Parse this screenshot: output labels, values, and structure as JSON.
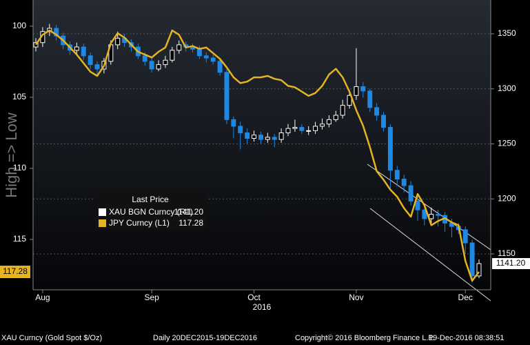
{
  "chart_data": {
    "type": "candlestick",
    "y_label": "High => Low",
    "x_year_label": "2016",
    "categories": [
      null,
      "Aug",
      null,
      null,
      null,
      null,
      null,
      null,
      null,
      null,
      null,
      null,
      null,
      null,
      null,
      null,
      null,
      "Sep",
      null,
      null,
      null,
      null,
      null,
      null,
      null,
      null,
      null,
      null,
      null,
      null,
      null,
      null,
      "Oct",
      null,
      null,
      null,
      null,
      null,
      null,
      null,
      null,
      null,
      null,
      null,
      null,
      null,
      null,
      "Nov",
      null,
      null,
      null,
      null,
      null,
      null,
      null,
      null,
      null,
      null,
      null,
      null,
      null,
      null,
      null,
      "Dec",
      null,
      null
    ],
    "ylim": [
      98.16,
      118.54
    ],
    "y_inverted": true,
    "yticks": [
      100,
      105,
      110,
      115
    ],
    "y2lim": [
      1117.4,
      1380.7
    ],
    "y2ticks": [
      1150,
      1200,
      1250,
      1300,
      1350
    ],
    "grid": true,
    "legend_title": "Last Price",
    "series": [
      {
        "name": "XAU BGN Curncy  (R1)",
        "type": "candlestick",
        "axis": "y2",
        "color": "#ffffff",
        "up_color": "#ffffff",
        "down_color": "#1e88e5",
        "last_price_label": "1141.20",
        "open": [
          1338,
          1342,
          1352,
          1355,
          1348,
          1340,
          1335,
          1338,
          1330,
          1322,
          1318,
          1325,
          1340,
          1346,
          1342,
          1338,
          1330,
          1325,
          1318,
          1322,
          1326,
          1335,
          1340,
          1338,
          1336,
          1330,
          1328,
          1325,
          1315,
          1272,
          1266,
          1260,
          1255,
          1258,
          1254,
          1256,
          1254,
          1260,
          1264,
          1265,
          1262,
          1262,
          1266,
          1268,
          1272,
          1276,
          1285,
          1294,
          1302,
          1298,
          1283,
          1276,
          1265,
          1226,
          1218,
          1212,
          1198,
          1190,
          1182,
          1186,
          1185,
          1178,
          1175,
          1172,
          1160,
          1130
        ],
        "high": [
          1346,
          1356,
          1359,
          1358,
          1351,
          1343,
          1342,
          1341,
          1333,
          1325,
          1328,
          1344,
          1352,
          1350,
          1345,
          1341,
          1333,
          1328,
          1326,
          1330,
          1338,
          1344,
          1343,
          1341,
          1339,
          1333,
          1331,
          1327,
          1318,
          1275,
          1270,
          1264,
          1262,
          1261,
          1260,
          1259,
          1264,
          1268,
          1272,
          1268,
          1266,
          1270,
          1273,
          1276,
          1280,
          1290,
          1298,
          1337,
          1306,
          1300,
          1287,
          1279,
          1268,
          1230,
          1222,
          1216,
          1202,
          1194,
          1192,
          1190,
          1188,
          1182,
          1178,
          1175,
          1163,
          1145
        ],
        "low": [
          1334,
          1338,
          1348,
          1344,
          1336,
          1331,
          1331,
          1326,
          1318,
          1313,
          1314,
          1322,
          1336,
          1338,
          1334,
          1327,
          1321,
          1315,
          1316,
          1319,
          1324,
          1332,
          1334,
          1333,
          1327,
          1324,
          1322,
          1312,
          1268,
          1255,
          1245,
          1250,
          1252,
          1250,
          1251,
          1247,
          1251,
          1257,
          1261,
          1259,
          1258,
          1259,
          1263,
          1265,
          1270,
          1273,
          1282,
          1290,
          1292,
          1279,
          1271,
          1261,
          1210,
          1212,
          1206,
          1194,
          1180,
          1176,
          1178,
          1175,
          1170,
          1165,
          1168,
          1150,
          1124,
          1128
        ],
        "close": [
          1342,
          1352,
          1355,
          1348,
          1340,
          1335,
          1338,
          1330,
          1322,
          1318,
          1325,
          1340,
          1346,
          1342,
          1338,
          1330,
          1325,
          1318,
          1322,
          1326,
          1335,
          1340,
          1338,
          1336,
          1330,
          1328,
          1325,
          1315,
          1272,
          1266,
          1260,
          1255,
          1258,
          1254,
          1256,
          1254,
          1260,
          1264,
          1265,
          1262,
          1262,
          1266,
          1268,
          1272,
          1276,
          1285,
          1294,
          1302,
          1298,
          1283,
          1276,
          1265,
          1226,
          1218,
          1212,
          1198,
          1190,
          1182,
          1186,
          1185,
          1178,
          1175,
          1172,
          1160,
          1130,
          1141.2
        ]
      },
      {
        "name": "JPY Curncy  (L1)",
        "type": "line",
        "axis": "y",
        "color": "#e6b422",
        "values": [
          101.3,
          100.6,
          100.3,
          100.6,
          101.0,
          101.5,
          102.0,
          102.6,
          103.2,
          103.5,
          102.8,
          101.2,
          100.5,
          100.8,
          101.3,
          101.8,
          102.0,
          102.2,
          101.8,
          101.5,
          100.3,
          100.6,
          101.5,
          101.4,
          101.6,
          101.5,
          101.9,
          102.3,
          102.9,
          103.6,
          104.0,
          103.9,
          103.6,
          103.6,
          103.5,
          103.7,
          103.8,
          104.2,
          104.3,
          104.6,
          104.9,
          104.7,
          104.2,
          103.4,
          103.0,
          103.6,
          104.6,
          105.9,
          107.0,
          108.5,
          110.2,
          110.8,
          111.5,
          112.0,
          112.8,
          113.4,
          111.8,
          112.6,
          114.0,
          113.7,
          113.5,
          113.8,
          114.0,
          116.5,
          117.9,
          117.28
        ]
      }
    ],
    "footer": [
      "XAU Curncy (Gold Spot  $/Oz)",
      "Daily 20DEC2015-19DEC2016",
      "Copyright© 2016 Bloomberg Finance L.P.",
      "19-Dec-2016 08:38:51"
    ]
  }
}
